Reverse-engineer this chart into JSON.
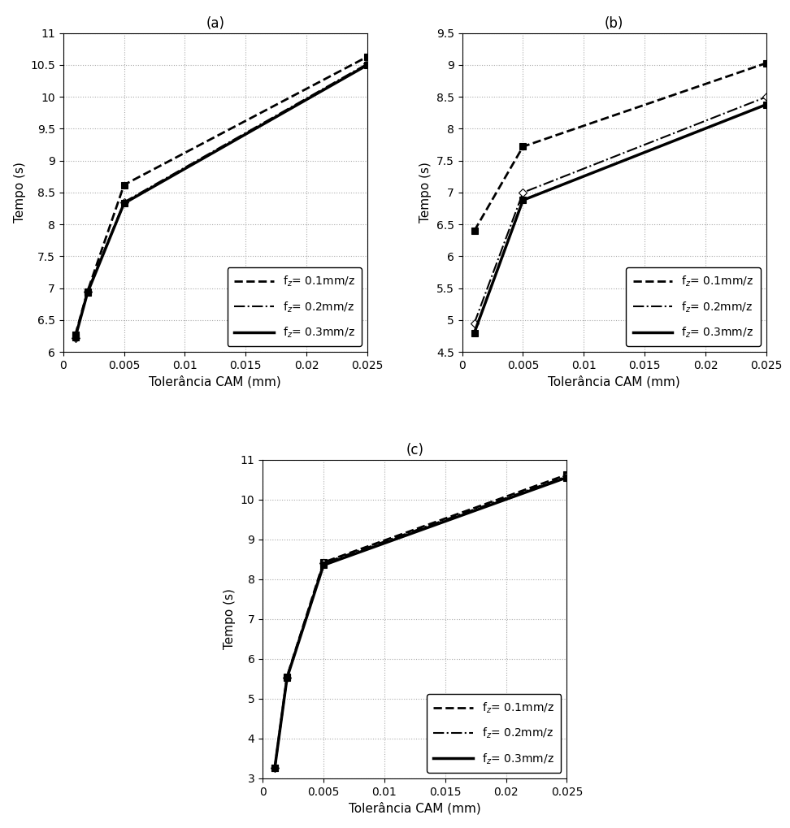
{
  "xlabel": "Tolerância CAM (mm)",
  "ylabel": "Tempo (s)",
  "x_lim": [
    0,
    0.025
  ],
  "xticks": [
    0,
    0.005,
    0.01,
    0.015,
    0.02,
    0.025
  ],
  "xtick_labels": [
    "0",
    "0.005",
    "0.01",
    "0.015",
    "0.02",
    "0.025"
  ],
  "grid_color": "#aaaaaa",
  "grid_linestyle": ":",
  "bg_color": "#ffffff",
  "legend_entries": [
    {
      "label": "f$_z$= 0.1mm/z",
      "ls": "--",
      "lw": 2.0
    },
    {
      "label": "f$_z$= 0.2mm/z",
      "ls": "-.",
      "lw": 1.5
    },
    {
      "label": "f$_z$= 0.3mm/z",
      "ls": "-",
      "lw": 2.5
    }
  ],
  "plot_a": {
    "title": "(a)",
    "ylim": [
      6,
      11
    ],
    "yticks": [
      6,
      6.5,
      7,
      7.5,
      8,
      8.5,
      9,
      9.5,
      10,
      10.5,
      11
    ],
    "ytick_labels": [
      "6",
      "6.5",
      "7",
      "7.5",
      "8",
      "8.5",
      "9",
      "9.5",
      "10",
      "10.5",
      "11"
    ],
    "series": [
      {
        "x": [
          0.001,
          0.002,
          0.005,
          0.025
        ],
        "y": [
          6.27,
          6.95,
          8.62,
          10.63
        ],
        "ls": "--",
        "lw": 2.0,
        "marker": "s",
        "ms": 6,
        "mfc": "black"
      },
      {
        "x": [
          0.001,
          0.002,
          0.005,
          0.025
        ],
        "y": [
          6.22,
          6.95,
          8.35,
          10.52
        ],
        "ls": "-.",
        "lw": 1.5,
        "marker": "D",
        "ms": 5,
        "mfc": "white"
      },
      {
        "x": [
          0.001,
          0.002,
          0.005,
          0.025
        ],
        "y": [
          6.23,
          6.93,
          8.33,
          10.5
        ],
        "ls": "-",
        "lw": 2.5,
        "marker": "s",
        "ms": 6,
        "mfc": "black"
      }
    ]
  },
  "plot_b": {
    "title": "(b)",
    "ylim": [
      4.5,
      9.5
    ],
    "yticks": [
      4.5,
      5.0,
      5.5,
      6.0,
      6.5,
      7.0,
      7.5,
      8.0,
      8.5,
      9.0,
      9.5
    ],
    "ytick_labels": [
      "4.5",
      "5",
      "5.5",
      "6",
      "6.5",
      "7",
      "7.5",
      "8",
      "8.5",
      "9",
      "9.5"
    ],
    "series": [
      {
        "x": [
          0.001,
          0.005,
          0.025
        ],
        "y": [
          6.4,
          7.72,
          9.03
        ],
        "ls": "--",
        "lw": 2.0,
        "marker": "s",
        "ms": 6,
        "mfc": "black"
      },
      {
        "x": [
          0.001,
          0.005,
          0.025
        ],
        "y": [
          4.95,
          7.0,
          8.5
        ],
        "ls": "-.",
        "lw": 1.5,
        "marker": "D",
        "ms": 5,
        "mfc": "white"
      },
      {
        "x": [
          0.001,
          0.005,
          0.025
        ],
        "y": [
          4.8,
          6.88,
          8.38
        ],
        "ls": "-",
        "lw": 2.5,
        "marker": "s",
        "ms": 6,
        "mfc": "black"
      }
    ]
  },
  "plot_c": {
    "title": "(c)",
    "ylim": [
      3,
      11
    ],
    "yticks": [
      3,
      4,
      5,
      6,
      7,
      8,
      9,
      10,
      11
    ],
    "ytick_labels": [
      "3",
      "4",
      "5",
      "6",
      "7",
      "8",
      "9",
      "10",
      "11"
    ],
    "series": [
      {
        "x": [
          0.001,
          0.002,
          0.005,
          0.025
        ],
        "y": [
          3.27,
          5.55,
          8.42,
          10.62
        ],
        "ls": "--",
        "lw": 2.0,
        "marker": "s",
        "ms": 6,
        "mfc": "black"
      },
      {
        "x": [
          0.001,
          0.002,
          0.005,
          0.025
        ],
        "y": [
          3.27,
          5.53,
          8.4,
          10.58
        ],
        "ls": "-.",
        "lw": 1.5,
        "marker": "D",
        "ms": 5,
        "mfc": "white"
      },
      {
        "x": [
          0.001,
          0.002,
          0.005,
          0.025
        ],
        "y": [
          3.27,
          5.52,
          8.35,
          10.55
        ],
        "ls": "-",
        "lw": 2.5,
        "marker": "s",
        "ms": 6,
        "mfc": "black"
      }
    ]
  }
}
